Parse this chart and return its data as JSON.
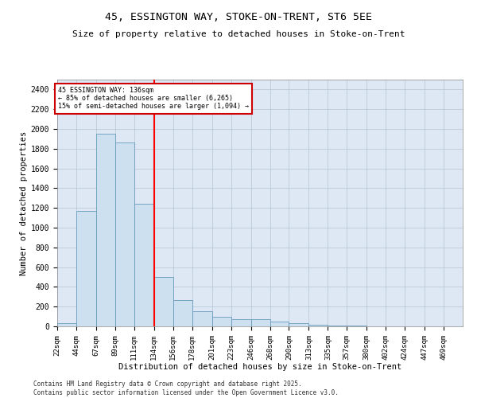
{
  "title_line1": "45, ESSINGTON WAY, STOKE-ON-TRENT, ST6 5EE",
  "title_line2": "Size of property relative to detached houses in Stoke-on-Trent",
  "xlabel": "Distribution of detached houses by size in Stoke-on-Trent",
  "ylabel": "Number of detached properties",
  "annotation_line1": "45 ESSINGTON WAY: 136sqm",
  "annotation_line2": "← 85% of detached houses are smaller (6,265)",
  "annotation_line3": "15% of semi-detached houses are larger (1,094) →",
  "footer_line1": "Contains HM Land Registry data © Crown copyright and database right 2025.",
  "footer_line2": "Contains public sector information licensed under the Open Government Licence v3.0.",
  "bar_color": "#cce0f0",
  "bar_edge_color": "#6699bb",
  "bg_color": "#dde8f4",
  "red_line_x": 134,
  "annotation_box_color": "#cc0000",
  "categories": [
    "22sqm",
    "44sqm",
    "67sqm",
    "89sqm",
    "111sqm",
    "134sqm",
    "156sqm",
    "178sqm",
    "201sqm",
    "223sqm",
    "246sqm",
    "268sqm",
    "290sqm",
    "313sqm",
    "335sqm",
    "357sqm",
    "380sqm",
    "402sqm",
    "424sqm",
    "447sqm",
    "469sqm"
  ],
  "bin_edges": [
    22,
    44,
    67,
    89,
    111,
    134,
    156,
    178,
    201,
    223,
    246,
    268,
    290,
    313,
    335,
    357,
    380,
    402,
    424,
    447,
    469,
    491
  ],
  "values": [
    30,
    1170,
    1950,
    1860,
    1240,
    500,
    270,
    155,
    100,
    75,
    70,
    50,
    30,
    20,
    10,
    5,
    3,
    2,
    1,
    1,
    1
  ],
  "ylim": [
    0,
    2500
  ],
  "yticks": [
    0,
    200,
    400,
    600,
    800,
    1000,
    1200,
    1400,
    1600,
    1800,
    2000,
    2200,
    2400
  ]
}
